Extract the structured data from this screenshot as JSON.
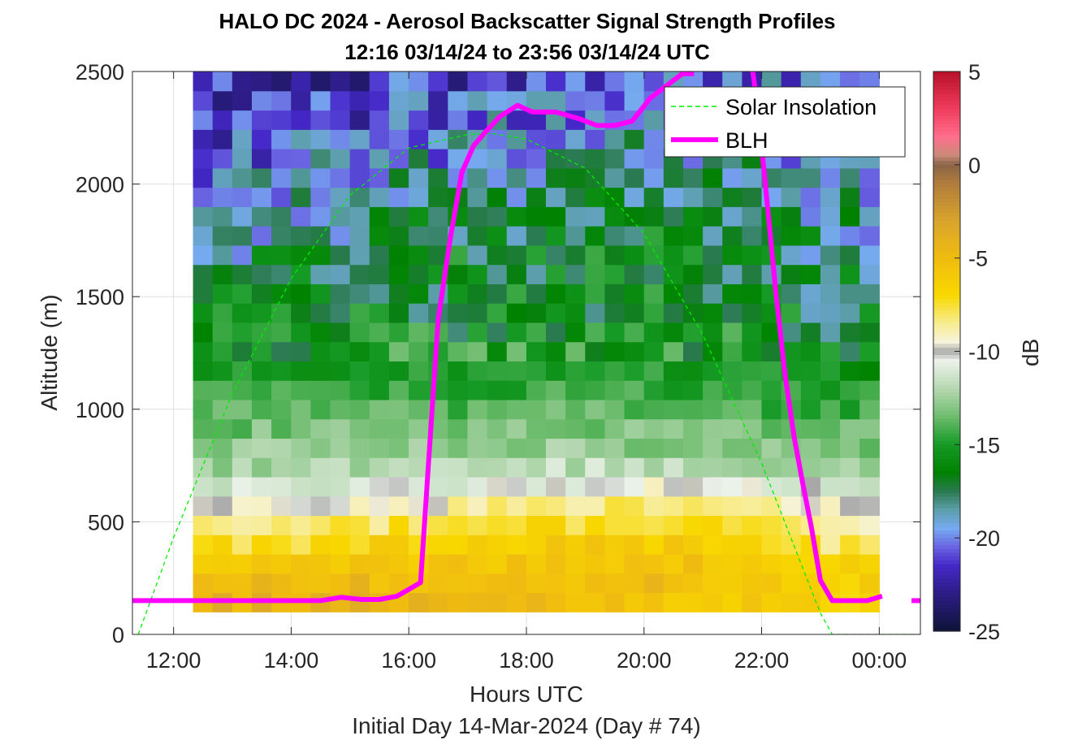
{
  "chart_data": {
    "type": "heatmap",
    "title_line1": "HALO DC 2024 - Aerosol Backscatter Signal Strength Profiles",
    "title_line2": "12:16 03/14/24 to 23:56 03/14/24  UTC",
    "xlabel": "Hours UTC",
    "xlabel2": "Initial Day 14-Mar-2024 (Day # 74)",
    "ylabel": "Altitude (m)",
    "xlim": [
      11.3,
      24.7
    ],
    "ylim": [
      0,
      2500
    ],
    "x_ticks": [
      {
        "v": 12,
        "label": "12:00"
      },
      {
        "v": 14,
        "label": "14:00"
      },
      {
        "v": 16,
        "label": "16:00"
      },
      {
        "v": 18,
        "label": "18:00"
      },
      {
        "v": 20,
        "label": "20:00"
      },
      {
        "v": 22,
        "label": "22:00"
      },
      {
        "v": 24,
        "label": "00:00"
      }
    ],
    "y_ticks": [
      0,
      500,
      1000,
      1500,
      2000,
      2500
    ],
    "grid": true,
    "colorbar": {
      "label": "dB",
      "range": [
        -25,
        5
      ],
      "ticks": [
        5,
        0,
        -5,
        -10,
        -15,
        -20,
        -25
      ],
      "colors": [
        {
          "v": 5,
          "c": "#b8102a"
        },
        {
          "v": 3,
          "c": "#f03c5c"
        },
        {
          "v": 1.5,
          "c": "#ff6e8c"
        },
        {
          "v": 0.5,
          "c": "#c98a78"
        },
        {
          "v": 0,
          "c": "#8a6448"
        },
        {
          "v": -1,
          "c": "#b07c3c"
        },
        {
          "v": -3,
          "c": "#d8a42c"
        },
        {
          "v": -5,
          "c": "#f0bc10"
        },
        {
          "v": -7,
          "c": "#f8d800"
        },
        {
          "v": -8.5,
          "c": "#f8ec90"
        },
        {
          "v": -9.5,
          "c": "#f6f3dc"
        },
        {
          "v": -10,
          "c": "#a8a8a8"
        },
        {
          "v": -10.5,
          "c": "#ecf2ea"
        },
        {
          "v": -12,
          "c": "#b6d8b2"
        },
        {
          "v": -13.5,
          "c": "#6ebc6e"
        },
        {
          "v": -15,
          "c": "#169a26"
        },
        {
          "v": -16.5,
          "c": "#008200"
        },
        {
          "v": -17.5,
          "c": "#2a7a50"
        },
        {
          "v": -18.5,
          "c": "#5c9eaa"
        },
        {
          "v": -19.5,
          "c": "#76aaf0"
        },
        {
          "v": -20.5,
          "c": "#6a64e2"
        },
        {
          "v": -21.5,
          "c": "#4428c8"
        },
        {
          "v": -23,
          "c": "#2c1c84"
        },
        {
          "v": -25,
          "c": "#0e1438"
        }
      ]
    },
    "heatmap": {
      "time_start": 12.33,
      "time_end": 24.0,
      "n_cols": 35,
      "alt_start": 100,
      "alt_end": 2500,
      "n_rows": 28,
      "profile_alt": [
        100,
        200,
        300,
        400,
        500,
        600,
        700,
        800,
        950,
        1100,
        1300,
        1500,
        1700,
        1900,
        2100,
        2300,
        2500
      ],
      "profile_db_morning": [
        -4,
        -4.5,
        -6,
        -7.5,
        -9,
        -10.8,
        -12,
        -12.8,
        -13.6,
        -14.6,
        -15.8,
        -16.5,
        -18.5,
        -19.5,
        -20.3,
        -21.5,
        -22
      ],
      "profile_db_midday": [
        -4.5,
        -4.7,
        -5.5,
        -6.5,
        -7.8,
        -9.5,
        -11.5,
        -12.5,
        -13.5,
        -14.5,
        -15.8,
        -16.5,
        -16.6,
        -17.6,
        -19.2,
        -20.5,
        -21.5
      ],
      "profile_db_evening": [
        -6,
        -5.2,
        -5.5,
        -6,
        -7,
        -8.5,
        -10.8,
        -12.5,
        -13.6,
        -14.6,
        -15.6,
        -16.2,
        -16.5,
        -17,
        -18.2,
        -19,
        -20
      ],
      "profile_db_night": [
        -7,
        -6.5,
        -7,
        -8.5,
        -9.2,
        -10.5,
        -12,
        -12.8,
        -14,
        -15,
        -16.5,
        -17.5,
        -18.2,
        -18.8,
        -19.5,
        -20.5,
        -21
      ]
    },
    "series": [
      {
        "name": "Solar Insolation",
        "style": "dashed",
        "color": "#00ee00",
        "x": [
          11.4,
          12.0,
          13.0,
          14.0,
          15.0,
          16.0,
          17.0,
          17.4,
          18.0,
          19.0,
          20.0,
          21.0,
          22.0,
          23.0,
          23.2,
          24.0,
          24.7
        ],
        "y": [
          0,
          430,
          1070,
          1580,
          1950,
          2160,
          2220,
          2225,
          2200,
          2070,
          1780,
          1330,
          760,
          95,
          0,
          0,
          0
        ]
      },
      {
        "name": "BLH",
        "style": "solid",
        "color": "#ff00ff",
        "segments": [
          {
            "x": [
              11.3,
              12.0,
              13.0,
              14.0,
              14.5,
              14.85,
              15.2,
              15.5,
              15.8,
              16.0,
              16.2,
              16.35,
              16.5,
              16.7,
              16.9,
              17.1,
              17.3,
              17.55,
              17.85,
              18.1,
              18.5,
              18.9,
              19.2,
              19.5,
              19.8,
              20.1,
              20.4,
              20.65,
              20.85
            ],
            "y": [
              150,
              150,
              150,
              150,
              150,
              165,
              155,
              155,
              170,
              200,
              230,
              820,
              1400,
              1750,
              2050,
              2170,
              2230,
              2300,
              2350,
              2320,
              2320,
              2290,
              2260,
              2260,
              2280,
              2380,
              2440,
              2490,
              2490
            ]
          },
          {
            "x": [
              21.85,
              21.95,
              22.1,
              22.25,
              22.4,
              22.55,
              22.7,
              22.85,
              23.0,
              23.2,
              23.5,
              23.8,
              24.05
            ],
            "y": [
              2500,
              2300,
              1900,
              1500,
              1150,
              880,
              670,
              470,
              240,
              150,
              150,
              150,
              170
            ]
          },
          {
            "x": [
              24.55,
              24.7
            ],
            "y": [
              150,
              150
            ]
          }
        ]
      }
    ],
    "legend": {
      "position": "top-right",
      "entries": [
        "Solar Insolation",
        "BLH"
      ]
    }
  }
}
